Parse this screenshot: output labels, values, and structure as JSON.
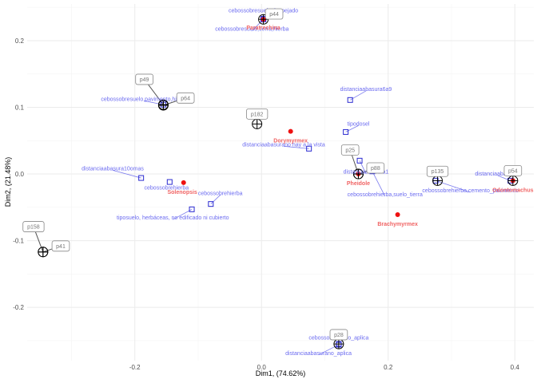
{
  "chart_data": {
    "type": "scatter",
    "xlabel": "Dim1, (74.62%)",
    "ylabel": "Dim2, (21.48%)",
    "xlim": [
      -0.37,
      0.43
    ],
    "ylim": [
      -0.28,
      0.255
    ],
    "xticks": [
      -0.2,
      0.0,
      0.2,
      0.4
    ],
    "yticks": [
      -0.2,
      -0.1,
      0.0,
      0.1,
      0.2
    ],
    "xtick_labels": [
      "-0.2",
      "0.0",
      "0.2",
      "0.4"
    ],
    "ytick_labels": [
      "-0.2",
      "-0.1",
      "0.0",
      "0.1",
      "0.2"
    ],
    "grid": true,
    "colors": {
      "variables": "#2a2ad0",
      "species": "#ee1111",
      "sites": "#000000",
      "variable_label": "#6b6bf0",
      "species_label": "#f06464",
      "site_label": "#777777"
    },
    "variables": [
      {
        "label": "cebossobresuelo,despejado",
        "x": 0.003,
        "y": 0.233,
        "lx": 0.003,
        "ly": 0.245,
        "lanchor": "middle"
      },
      {
        "label": "cebossobresuelo,tierra,hierba",
        "x": 0.003,
        "y": 0.232,
        "lx": -0.015,
        "ly": 0.217,
        "lanchor": "middle"
      },
      {
        "label": "cebossobresuelo,pavimento,hierba",
        "x": -0.155,
        "y": 0.104,
        "lx": -0.185,
        "ly": 0.112,
        "lanchor": "middle"
      },
      {
        "label": "distanciaabasura6a9",
        "x": 0.14,
        "y": 0.111,
        "lx": 0.165,
        "ly": 0.127,
        "lanchor": "middle"
      },
      {
        "label": "tipodosel",
        "x": 0.133,
        "y": 0.063,
        "lx": 0.153,
        "ly": 0.075,
        "lanchor": "middle"
      },
      {
        "label": "distanciaabasurano hay a la vista",
        "x": 0.075,
        "y": 0.038,
        "lx": 0.035,
        "ly": 0.044,
        "lanchor": "middle"
      },
      {
        "label": "distanciaabasura10omas",
        "x": -0.19,
        "y": -0.006,
        "lx": -0.235,
        "ly": 0.008,
        "lanchor": "middle"
      },
      {
        "label": "cebossobrehierba",
        "x": -0.145,
        "y": -0.012,
        "lx": -0.15,
        "ly": -0.021,
        "lanchor": "middle"
      },
      {
        "label": "cebossobrehierba",
        "x": -0.08,
        "y": -0.045,
        "lx": -0.065,
        "ly": -0.029,
        "lanchor": "middle"
      },
      {
        "label": "tiposuelo, herbáceas, no edificado ni cubierto",
        "x": -0.11,
        "y": -0.053,
        "lx": -0.14,
        "ly": -0.066,
        "lanchor": "middle"
      },
      {
        "label": "distanciaabasura1",
        "x": 0.155,
        "y": 0.02,
        "lx": 0.165,
        "ly": 0.003,
        "lanchor": "middle"
      },
      {
        "label": "cebossobrehierba,suelo_tierra",
        "x": 0.175,
        "y": 0.004,
        "lx": 0.195,
        "ly": -0.031,
        "lanchor": "middle"
      },
      {
        "label": "cebossobrehierba,cemento_pavimento",
        "x": 0.275,
        "y": -0.01,
        "lx": 0.33,
        "ly": -0.025,
        "lanchor": "middle"
      },
      {
        "label": "distanciaabasura3",
        "x": 0.393,
        "y": -0.01,
        "lx": 0.373,
        "ly": 0.0,
        "lanchor": "middle"
      },
      {
        "label": "cebossobresuelo_aplica",
        "x": 0.122,
        "y": -0.255,
        "lx": 0.122,
        "ly": -0.246,
        "lanchor": "middle"
      },
      {
        "label": "distanciaabasurano_aplica",
        "x": 0.122,
        "y": -0.256,
        "lx": 0.09,
        "ly": -0.269,
        "lanchor": "middle"
      }
    ],
    "species": [
      {
        "label": "Paratrechina",
        "x": 0.003,
        "y": 0.232,
        "lx": 0.003,
        "ly": 0.22
      },
      {
        "label": "Dorymyrmex",
        "x": 0.046,
        "y": 0.064,
        "lx": 0.046,
        "ly": 0.051
      },
      {
        "label": "Solenopsis",
        "x": -0.123,
        "y": -0.013,
        "lx": -0.125,
        "ly": -0.026
      },
      {
        "label": "Pheidole",
        "x": 0.153,
        "y": 0.0,
        "lx": 0.153,
        "ly": -0.013
      },
      {
        "label": "Brachymyrmex",
        "x": 0.215,
        "y": -0.061,
        "lx": 0.215,
        "ly": -0.074
      },
      {
        "label": "Odontomachus",
        "x": 0.397,
        "y": -0.01,
        "lx": 0.397,
        "ly": -0.023
      }
    ],
    "sites": [
      {
        "label": "p44",
        "x": 0.003,
        "y": 0.232,
        "bx": 0.02,
        "by": 0.24
      },
      {
        "label": "p49",
        "x": -0.155,
        "y": 0.104,
        "bx": -0.185,
        "by": 0.142
      },
      {
        "label": "p64",
        "x": -0.155,
        "y": 0.103,
        "bx": -0.12,
        "by": 0.114
      },
      {
        "label": "p182",
        "x": -0.007,
        "y": 0.075,
        "bx": -0.007,
        "by": 0.09
      },
      {
        "label": "p25",
        "x": 0.153,
        "y": 0.0,
        "bx": 0.14,
        "by": 0.036
      },
      {
        "label": "p88",
        "x": 0.153,
        "y": 0.0,
        "bx": 0.18,
        "by": 0.009
      },
      {
        "label": "p135",
        "x": 0.278,
        "y": -0.01,
        "bx": 0.278,
        "by": 0.004
      },
      {
        "label": "p54",
        "x": 0.397,
        "y": -0.01,
        "bx": 0.397,
        "by": 0.005
      },
      {
        "label": "p158",
        "x": -0.345,
        "y": -0.117,
        "bx": -0.36,
        "by": -0.079
      },
      {
        "label": "p41",
        "x": -0.345,
        "y": -0.117,
        "bx": -0.317,
        "by": -0.108
      },
      {
        "label": "p28",
        "x": 0.122,
        "y": -0.255,
        "bx": 0.122,
        "by": -0.241
      }
    ]
  }
}
